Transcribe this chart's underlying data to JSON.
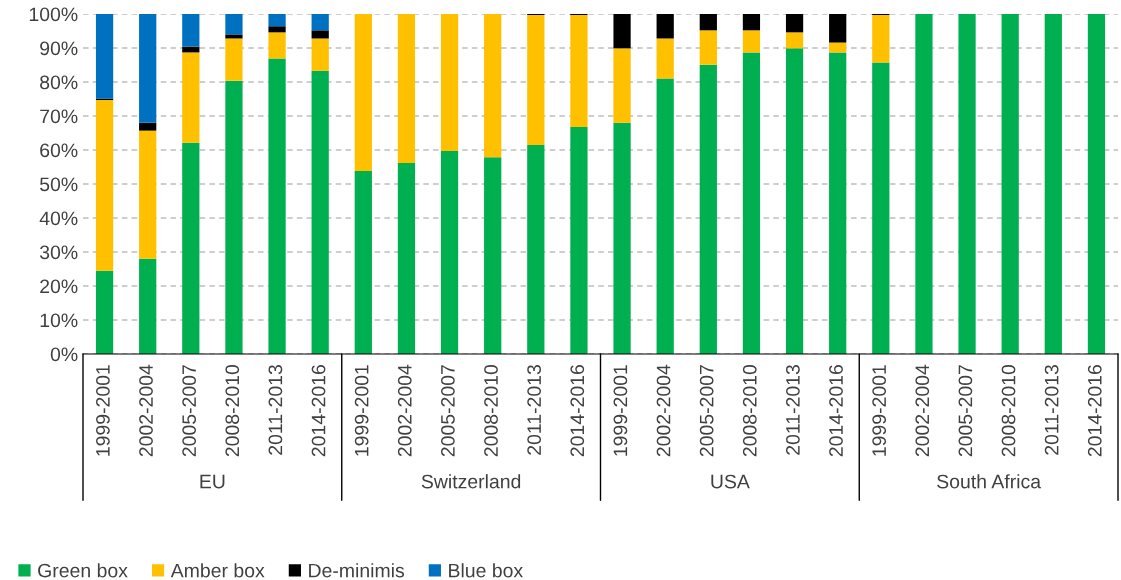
{
  "chart_data": {
    "type": "bar",
    "stacked": true,
    "categories": [
      "1999-2001",
      "2002-2004",
      "2005-2007",
      "2008-2010",
      "2011-2013",
      "2014-2016",
      "1999-2001",
      "2002-2004",
      "2005-2007",
      "2008-2010",
      "2011-2013",
      "2014-2016",
      "1999-2001",
      "2002-2004",
      "2005-2007",
      "2008-2010",
      "2011-2013",
      "2014-2016",
      "1999-2001",
      "2002-2004",
      "2005-2007",
      "2008-2010",
      "2011-2013",
      "2014-2016"
    ],
    "annotations": [
      "EU",
      "Switzerland",
      "USA",
      "South Africa"
    ],
    "series": [
      {
        "name": "Green box",
        "color": "#00b050",
        "values": [
          24.5,
          28,
          62.1,
          80.4,
          86.9,
          83.3,
          53.8,
          56.2,
          59.7,
          57.9,
          61.5,
          66.8,
          68,
          81,
          85.1,
          88.7,
          89.9,
          88.7,
          85.7,
          100,
          100,
          100,
          100,
          100
        ]
      },
      {
        "name": "Amber box",
        "color": "#ffc000",
        "values": [
          50.2,
          37.7,
          26.6,
          12.4,
          7.7,
          9.5,
          46.2,
          43.8,
          40.3,
          42.1,
          38.2,
          32.9,
          21.9,
          11.8,
          10.1,
          6.5,
          4.7,
          2.9,
          14,
          0,
          0,
          0,
          0,
          0
        ]
      },
      {
        "name": "De-minimis",
        "color": "#000000",
        "values": [
          0.4,
          2.3,
          1.7,
          1.2,
          1.8,
          2.4,
          0,
          0,
          0,
          0,
          0.3,
          0.3,
          10.1,
          7.2,
          4.8,
          4.8,
          5.4,
          8.4,
          0.3,
          0,
          0,
          0,
          0,
          0
        ]
      },
      {
        "name": "Blue box",
        "color": "#0070c0",
        "values": [
          24.9,
          32,
          9.6,
          6,
          3.6,
          4.8,
          0,
          0,
          0,
          0,
          0,
          0,
          0,
          0,
          0,
          0,
          0,
          0,
          0,
          0,
          0,
          0,
          0,
          0
        ]
      }
    ],
    "ylim": [
      0,
      100
    ],
    "yticks": [
      {
        "value": 0,
        "label": "0%"
      },
      {
        "value": 10,
        "label": "10%"
      },
      {
        "value": 20,
        "label": "20%"
      },
      {
        "value": 30,
        "label": "30%"
      },
      {
        "value": 40,
        "label": "40%"
      },
      {
        "value": 50,
        "label": "50%"
      },
      {
        "value": 60,
        "label": "60%"
      },
      {
        "value": 70,
        "label": "70%"
      },
      {
        "value": 80,
        "label": "80%"
      },
      {
        "value": 90,
        "label": "90%"
      },
      {
        "value": 100,
        "label": "100%"
      }
    ],
    "grid": "y",
    "legend": "bottom left"
  }
}
